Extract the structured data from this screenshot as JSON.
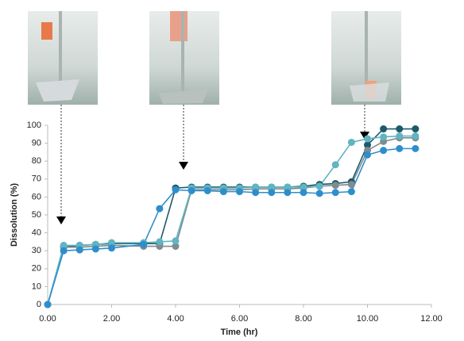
{
  "chart_data": {
    "type": "line",
    "x_label": "Time (hr)",
    "y_label": "Dissolution (%)",
    "x": [
      0,
      0.5,
      1,
      1.5,
      2,
      3,
      3.5,
      4,
      4.5,
      5,
      5.5,
      6,
      6.5,
      7,
      7.5,
      8,
      8.5,
      9,
      9.5,
      10,
      10.5,
      11,
      11.5
    ],
    "series": [
      {
        "color": "#1d5a6b",
        "values": [
          0,
          32,
          33,
          33.5,
          34,
          34,
          34,
          65,
          65.5,
          65.5,
          65.5,
          65.5,
          65.5,
          65.5,
          65.5,
          66,
          67,
          67.5,
          68.5,
          89,
          98,
          98,
          98
        ]
      },
      {
        "color": "#7f8b8f",
        "values": [
          0,
          32,
          32,
          32.5,
          33,
          32.5,
          32.5,
          32.5,
          64,
          64,
          64,
          64,
          64.5,
          64.5,
          64.5,
          65,
          66,
          66.5,
          67,
          86,
          91,
          93,
          93
        ]
      },
      {
        "color": "#5fb5c1",
        "values": [
          0,
          33,
          33,
          33.5,
          34.5,
          34.5,
          35,
          35.5,
          65,
          65,
          65,
          65,
          65.5,
          65.5,
          65.5,
          65.5,
          66,
          78,
          90.5,
          92.5,
          93.5,
          94,
          94
        ]
      },
      {
        "color": "#2e8ecd",
        "values": [
          0,
          30,
          30.5,
          31,
          31.5,
          33.5,
          53.5,
          64,
          63.5,
          63.5,
          63,
          63,
          62.5,
          62.5,
          62.5,
          62.5,
          62,
          62.5,
          63,
          83.5,
          86,
          87,
          87
        ]
      }
    ],
    "xlim": [
      0,
      12
    ],
    "xticks": [
      {
        "value": 0,
        "label": "0.00"
      },
      {
        "value": 2,
        "label": "2.00"
      },
      {
        "value": 4,
        "label": "4.00"
      },
      {
        "value": 6,
        "label": "6.00"
      },
      {
        "value": 8,
        "label": "8.00"
      },
      {
        "value": 10,
        "label": "10.00"
      },
      {
        "value": 12,
        "label": "12.00"
      }
    ],
    "ylim": [
      0,
      100
    ],
    "yticks": [
      0,
      10,
      20,
      30,
      40,
      50,
      60,
      70,
      80,
      90,
      100
    ],
    "grid": false
  }
}
